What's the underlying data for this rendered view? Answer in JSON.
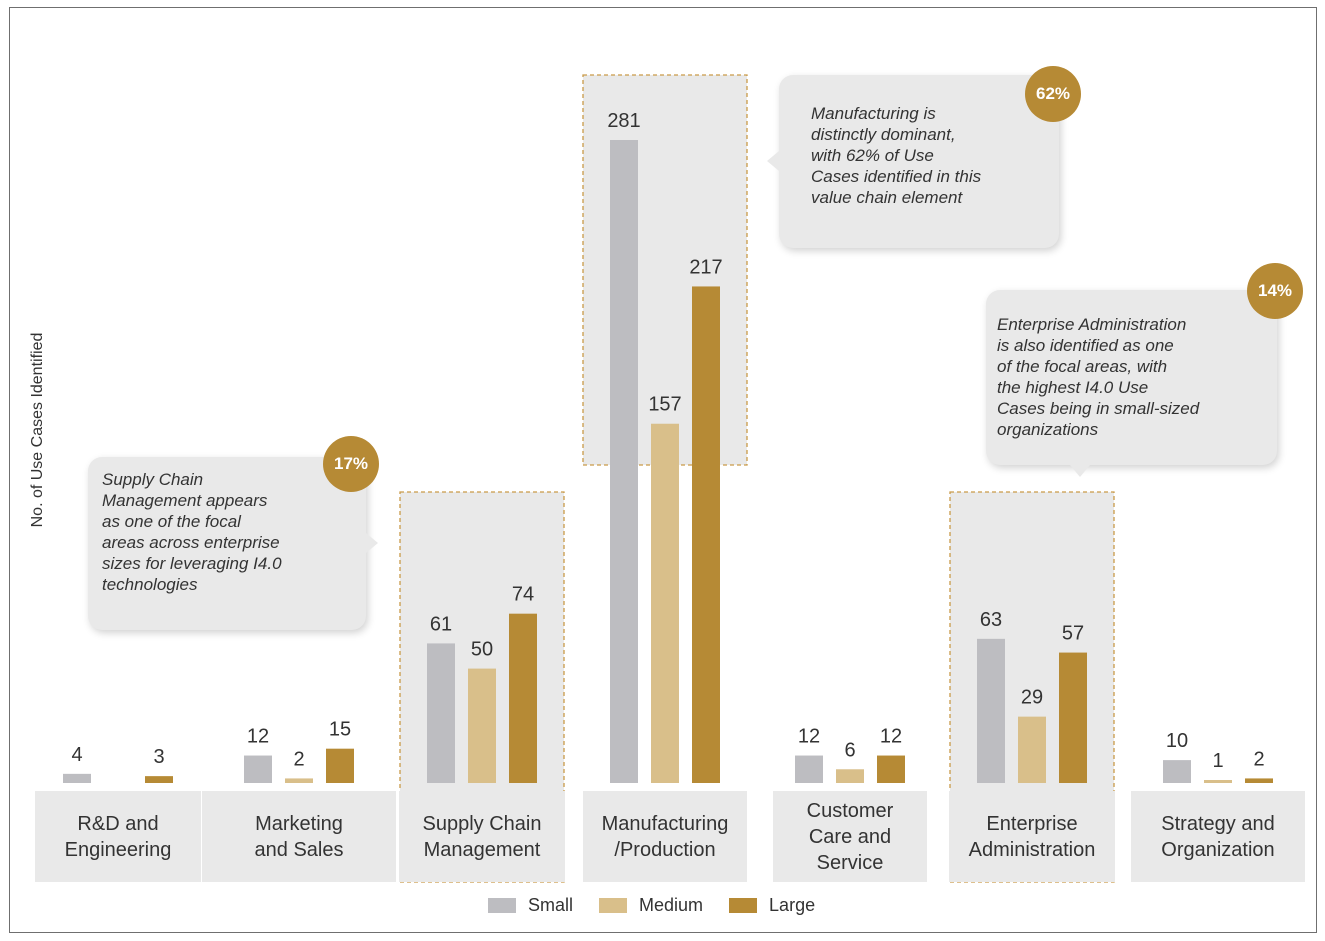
{
  "chart_data": {
    "type": "bar",
    "ylabel": "No. of Use Cases Identified",
    "categories": [
      "R&D and\nEngineering",
      "Marketing\nand Sales",
      "Supply Chain\nManagement",
      "Manufacturing\n/Production",
      "Customer\nCare and\nService",
      "Enterprise\nAdministration",
      "Strategy and\nOrganization"
    ],
    "series": [
      {
        "name": "Small",
        "color": "#bdbdc1",
        "values": [
          4,
          12,
          61,
          281,
          12,
          63,
          10
        ]
      },
      {
        "name": "Medium",
        "color": "#d9bf8a",
        "values": [
          null,
          2,
          50,
          157,
          6,
          29,
          1
        ]
      },
      {
        "name": "Large",
        "color": "#b68a35",
        "values": [
          3,
          15,
          74,
          217,
          12,
          57,
          2
        ]
      }
    ],
    "highlighted_categories": [
      2,
      3,
      5
    ],
    "ylim": [
      0,
      300
    ],
    "grid": false,
    "legend": "bottom-center",
    "annotations": [
      {
        "badge": "17%",
        "text": "Supply Chain\nManagement appears\nas one of the focal\nareas across enterprise\nsizes for leveraging I4.0\ntechnologies"
      },
      {
        "badge": "62%",
        "text": "Manufacturing is\ndistinctly dominant,\nwith 62% of Use\nCases identified in this\nvalue chain element"
      },
      {
        "badge": "14%",
        "text": "Enterprise Administration\nis also identified as one\nof the focal areas, with\nthe highest I4.0 Use\nCases being in small-sized\norganizations"
      }
    ]
  }
}
